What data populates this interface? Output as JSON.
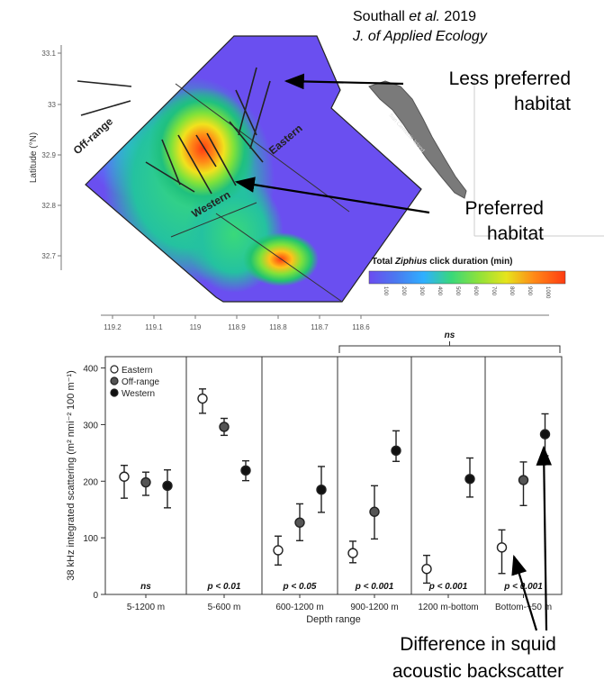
{
  "citation": {
    "authors": "Southall",
    "et_al": "et al.",
    "year": "2019",
    "journal": "J. of Applied Ecology"
  },
  "callouts": {
    "less_preferred": [
      "Less preferred",
      "habitat"
    ],
    "preferred": [
      "Preferred",
      "habitat"
    ],
    "difference": [
      "Difference in squid",
      "acoustic backscatter"
    ]
  },
  "map": {
    "ylabel": "Latitude (°N)",
    "lat_ticks": [
      "33.1",
      "33",
      "32.9",
      "32.8",
      "32.7"
    ],
    "lon_ticks": [
      "119.2",
      "119.1",
      "119",
      "118.9",
      "118.8",
      "118.7",
      "118.6"
    ],
    "regions": {
      "off_range": "Off-range",
      "western": "Western",
      "eastern": "Eastern"
    },
    "island_label": "San Clemente Island",
    "colorbar": {
      "title_prefix": "Total ",
      "title_italic": "Ziphius",
      "title_suffix": " click duration (min)",
      "ticks": [
        "100",
        "200",
        "300",
        "400",
        "500",
        "600",
        "700",
        "800",
        "900",
        "1000"
      ],
      "colors": [
        "#6b4cf0",
        "#4a7af0",
        "#2fb0ff",
        "#39d87a",
        "#8fe23a",
        "#e6e41c",
        "#ffc21a",
        "#ff8a17",
        "#ff3b12"
      ]
    }
  },
  "chart_data": {
    "type": "scatter",
    "title": "",
    "xlabel": "Depth range",
    "ylabel": "38 kHz integrated scattering (m² nmi⁻² 100 m⁻¹)",
    "ylim": [
      0,
      420
    ],
    "yticks": [
      0,
      100,
      200,
      300,
      400
    ],
    "categories": [
      "5-1200 m",
      "5-600 m",
      "600-1200 m",
      "900-1200 m",
      "1200 m-bottom",
      "Bottom-~50 m"
    ],
    "significance": [
      "ns",
      "p < 0.01",
      "p < 0.05",
      "p < 0.001",
      "p < 0.001",
      "p < 0.001"
    ],
    "bracket_label": "ns",
    "legend": {
      "position": "top-left"
    },
    "series": [
      {
        "name": "Eastern",
        "style": "open",
        "values": [
          208,
          346,
          78,
          73,
          45,
          83
        ],
        "lower": [
          170,
          320,
          52,
          56,
          20,
          37
        ],
        "upper": [
          228,
          363,
          103,
          94,
          69,
          114
        ]
      },
      {
        "name": "Off-range",
        "style": "gray",
        "values": [
          198,
          296,
          127,
          146,
          null,
          202
        ],
        "lower": [
          175,
          281,
          95,
          98,
          null,
          157
        ],
        "upper": [
          216,
          311,
          160,
          192,
          null,
          234
        ]
      },
      {
        "name": "Western",
        "style": "filled",
        "values": [
          192,
          219,
          185,
          254,
          204,
          283
        ],
        "lower": [
          153,
          201,
          145,
          235,
          172,
          245
        ],
        "upper": [
          220,
          236,
          226,
          289,
          241,
          319
        ]
      }
    ]
  }
}
